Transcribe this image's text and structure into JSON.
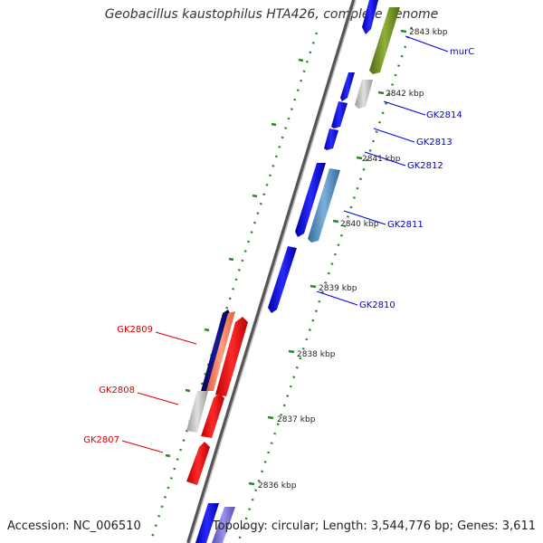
{
  "header": {
    "title": "Geobacillus kaustophilus HTA426, complete genome"
  },
  "footer": {
    "accession": "Accession: NC_006510",
    "summary": "Topology: circular; Length: 3,544,776 bp; Genes: 3,611"
  },
  "kbp_labels": [
    "2843 kbp",
    "2842 kbp",
    "2841 kbp",
    "2840 kbp",
    "2839 kbp",
    "2838 kbp",
    "2837 kbp",
    "2836 kbp"
  ],
  "genes_forward": [
    {
      "name": "murC",
      "color": "#0000cc"
    },
    {
      "name": "GK2814",
      "color": "#0000cc"
    },
    {
      "name": "GK2813",
      "color": "#0000cc"
    },
    {
      "name": "GK2812",
      "color": "#0000cc"
    },
    {
      "name": "GK2811",
      "color": "#0000cc"
    },
    {
      "name": "GK2810",
      "color": "#0000cc"
    }
  ],
  "genes_reverse": [
    {
      "name": "GK2809",
      "color": "#dd0000"
    },
    {
      "name": "GK2808",
      "color": "#dd0000"
    },
    {
      "name": "GK2807",
      "color": "#dd0000"
    }
  ],
  "colors": {
    "forward_cds": "#0000ee",
    "reverse_cds": "#ee0000",
    "other_gene": "#c0c0c0",
    "gc_positive": "#6b8e23",
    "gc_negative": "#4682b4",
    "backbone": "#777777",
    "tick": "#228b22"
  }
}
